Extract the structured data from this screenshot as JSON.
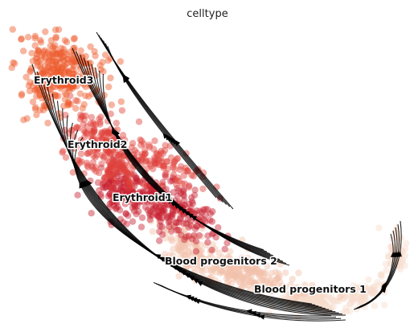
{
  "chart_data": {
    "type": "scatter",
    "title": "celltype",
    "xlabel": "",
    "ylabel": "",
    "grid": false,
    "legend": "on data",
    "axes_visible": false,
    "overlay": "velocity streamlines with arrowheads",
    "series": [
      {
        "name": "Erythroid3",
        "color": "#ee5a2c"
      },
      {
        "name": "Erythroid2",
        "color": "#e0413a"
      },
      {
        "name": "Erythroid1",
        "color": "#c8202f"
      },
      {
        "name": "Blood progenitors 2",
        "color": "#f2c2aa"
      },
      {
        "name": "Blood progenitors 1",
        "color": "#f7dccd"
      }
    ]
  }
}
